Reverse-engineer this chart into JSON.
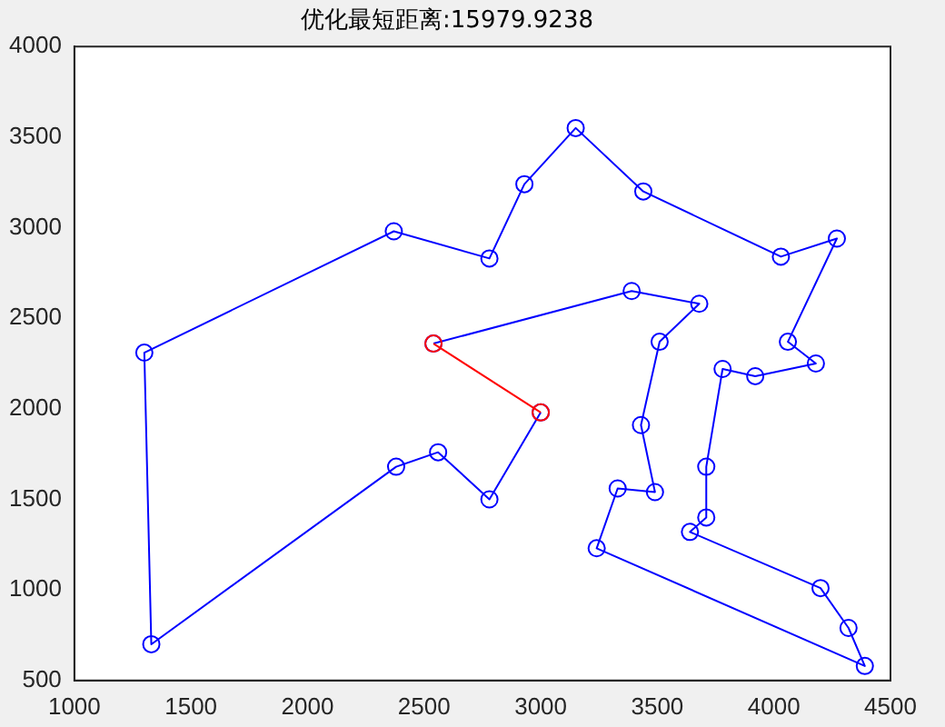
{
  "chart_data": {
    "type": "line",
    "title": "优化最短距离:15979.9238",
    "xlim": [
      1000,
      4500
    ],
    "xticks": [
      1000,
      1500,
      2000,
      2500,
      3000,
      3500,
      4000,
      4500
    ],
    "ylim": [
      500,
      4000
    ],
    "yticks": [
      500,
      1000,
      1500,
      2000,
      2500,
      3000,
      3500,
      4000
    ],
    "grid": false,
    "legend": false,
    "marker": "circle",
    "line_style": "solid",
    "series": [
      {
        "color": "#0000ff",
        "x": [
          2540,
          3390,
          3680,
          3510,
          3430,
          3490,
          3330,
          3240,
          4390,
          4320,
          4200,
          3640,
          3710,
          3710,
          3780,
          3920,
          4180,
          4060,
          4270,
          4030,
          3440,
          3150,
          2930,
          2780,
          2370,
          1300,
          1330,
          2380,
          2560,
          2780,
          3000
        ],
        "values": [
          2360,
          2650,
          2580,
          2370,
          1910,
          1540,
          1560,
          1230,
          580,
          790,
          1010,
          1320,
          1400,
          1680,
          2220,
          2180,
          2250,
          2370,
          2940,
          2840,
          3200,
          3550,
          3240,
          2830,
          2980,
          2310,
          700,
          1680,
          1760,
          1500,
          1980
        ]
      },
      {
        "color": "#ff0000",
        "x": [
          3000,
          2540
        ],
        "values": [
          1980,
          2360
        ]
      }
    ]
  }
}
